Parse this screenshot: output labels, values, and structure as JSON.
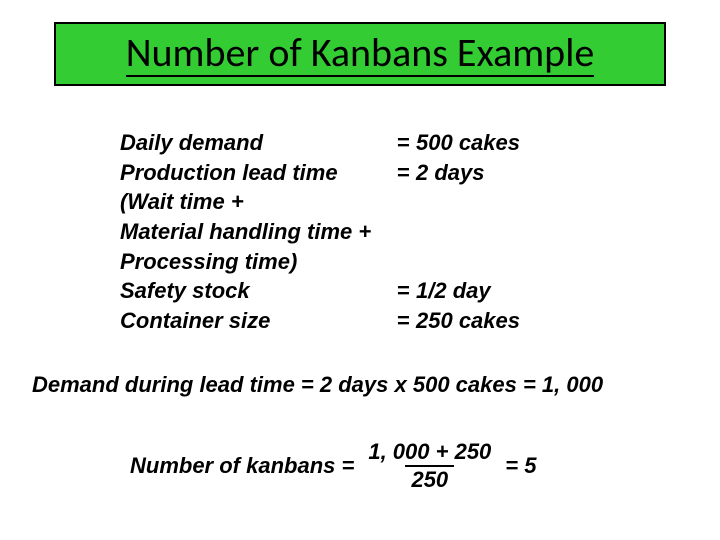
{
  "title": "Number of Kanbans Example",
  "title_fontsize": 40,
  "title_bg": "#33cc33",
  "title_border": "#000000",
  "body_font": "Arial",
  "body_fontsize": 22,
  "text_color": "#000000",
  "params": {
    "rows": [
      {
        "label": "Daily demand",
        "eq": "=",
        "val": "500 cakes"
      },
      {
        "label": "Production lead time",
        "eq": "=",
        "val": "2 days"
      },
      {
        "label": "(Wait time +",
        "eq": "",
        "val": ""
      },
      {
        "label": "Material handling time +",
        "eq": "",
        "val": ""
      },
      {
        "label": "Processing time)",
        "eq": "",
        "val": ""
      },
      {
        "label": "Safety stock",
        "eq": "=",
        "val": "1/2 day"
      },
      {
        "label": "Container size",
        "eq": "=",
        "val": "250 cakes"
      }
    ]
  },
  "calc1": "Demand during lead time = 2 days x 500 cakes = 1, 000",
  "calc2": {
    "lhs": "Number of kanbans = ",
    "numerator": "1, 000 + 250",
    "denominator": "250",
    "rhs": " = 5"
  }
}
